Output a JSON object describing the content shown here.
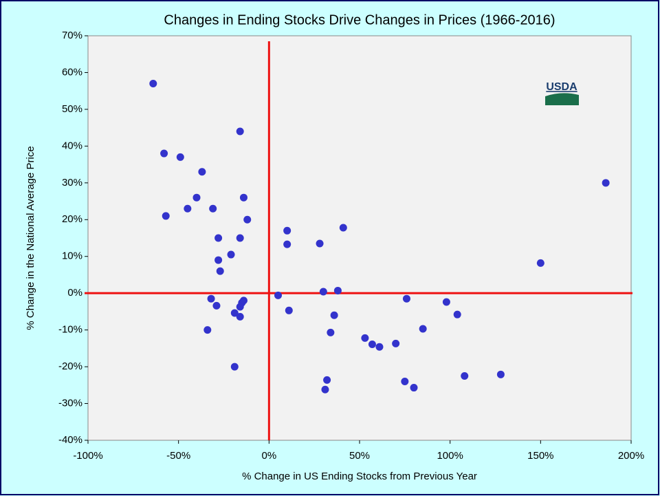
{
  "chart_data": {
    "type": "scatter",
    "title": "Changes in Ending Stocks Drive Changes in Prices (1966-2016)",
    "x_label": "% Change in US Ending Stocks from Previous Year",
    "y_label": "% Change in the National Average Price",
    "logo_text": "USDA",
    "color": "#3333cc",
    "zero_lines": true,
    "zero_line_color": "#ee1111",
    "xlim": [
      -100,
      200
    ],
    "ylim": [
      -40,
      70
    ],
    "xticks": [
      {
        "value": -100,
        "label": "-100%"
      },
      {
        "value": -50,
        "label": "-50%"
      },
      {
        "value": 0,
        "label": "0%"
      },
      {
        "value": 50,
        "label": "50%"
      },
      {
        "value": 100,
        "label": "100%"
      },
      {
        "value": 150,
        "label": "150%"
      },
      {
        "value": 200,
        "label": "200%"
      }
    ],
    "yticks": [
      {
        "value": -40,
        "label": "-40%"
      },
      {
        "value": -30,
        "label": "-30%"
      },
      {
        "value": -20,
        "label": "-20%"
      },
      {
        "value": -10,
        "label": "-10%"
      },
      {
        "value": 0,
        "label": "0%"
      },
      {
        "value": 10,
        "label": "10%"
      },
      {
        "value": 20,
        "label": "20%"
      },
      {
        "value": 30,
        "label": "30%"
      },
      {
        "value": 40,
        "label": "40%"
      },
      {
        "value": 50,
        "label": "50%"
      },
      {
        "value": 60,
        "label": "60%"
      },
      {
        "value": 70,
        "label": "70%"
      }
    ],
    "x": [
      -64,
      -58,
      -49,
      -57,
      -37,
      -40,
      -45,
      -31,
      -16,
      -14,
      -12,
      -16,
      -28,
      -28,
      -27,
      -21,
      -32,
      -29,
      -34,
      -19,
      -16,
      -16,
      -15,
      -14,
      -19,
      5,
      11,
      10,
      10,
      28,
      41,
      30,
      38,
      36,
      34,
      32,
      31,
      53,
      57,
      61,
      70,
      76,
      85,
      75,
      80,
      98,
      104,
      108,
      128,
      150,
      186
    ],
    "values": [
      57,
      38,
      37,
      21,
      33,
      26,
      23,
      23,
      44,
      26,
      20,
      15,
      15,
      9,
      6,
      10.5,
      -1.5,
      -3.4,
      -10,
      -5.4,
      -6.4,
      -3.7,
      -2.6,
      -2,
      -20,
      -0.6,
      -4.7,
      13.3,
      17,
      13.5,
      17.8,
      0.4,
      0.7,
      -6,
      -10.7,
      -23.6,
      -26.2,
      -12.2,
      -13.9,
      -14.6,
      -13.7,
      -1.5,
      -9.7,
      -24,
      -25.7,
      -2.4,
      -5.8,
      -22.5,
      -22.1,
      8.2,
      30
    ]
  }
}
